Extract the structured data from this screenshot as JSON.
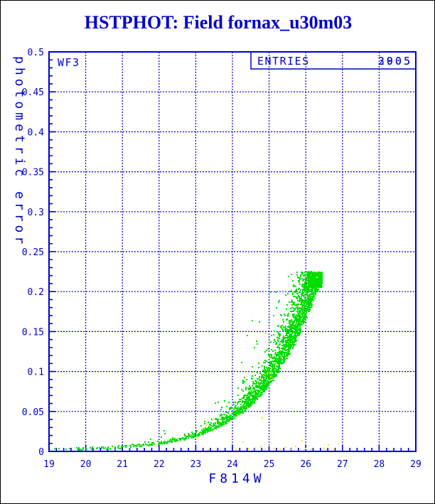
{
  "title": "HSTPHOT: Field fornax_u30m03",
  "panel_label": "WF3",
  "entries_box": {
    "label": "ENTRIES",
    "values": [
      "2905",
      "3005"
    ]
  },
  "colors": {
    "axis_blue": "#0000cc",
    "series_green": "#00dd00",
    "series_yellow": "#ffe400",
    "background": "#ffffff",
    "page_border": "#000000"
  },
  "chart_data": {
    "type": "scatter",
    "title": "HSTPHOT: Field fornax_u30m03",
    "xlabel": "F814W",
    "ylabel": "photometric error",
    "xlim": [
      19,
      29
    ],
    "ylim": [
      0,
      0.5
    ],
    "x_major_ticks": [
      19,
      20,
      21,
      22,
      23,
      24,
      25,
      26,
      27,
      28,
      29
    ],
    "x_tick_labels": [
      "19",
      "20",
      "21",
      "22",
      "23",
      "24",
      "25",
      "26",
      "27",
      "28",
      "29"
    ],
    "x_minor_step": 0.2,
    "y_major_ticks": [
      0,
      0.05,
      0.1,
      0.15,
      0.2,
      0.25,
      0.3,
      0.35,
      0.4,
      0.45,
      0.5
    ],
    "y_tick_labels": [
      "0",
      "0.05",
      "0.1",
      "0.15",
      "0.2",
      "0.25",
      "0.3",
      "0.35",
      "0.4",
      "0.45",
      "0.5"
    ],
    "y_minor_step": 0.01,
    "grid": "dashed lines at every major tick",
    "series": [
      {
        "name": "well-measured stars (green)",
        "color": "#00dd00",
        "marker_px": 2,
        "n_points": 2905,
        "mag_range": [
          19.05,
          26.45
        ],
        "max_error": 0.225,
        "ridge_error_vs_mag": [
          [
            19.0,
            0.0022
          ],
          [
            20.0,
            0.0032
          ],
          [
            21.0,
            0.005
          ],
          [
            21.5,
            0.0065
          ],
          [
            22.0,
            0.009
          ],
          [
            22.5,
            0.013
          ],
          [
            23.0,
            0.019
          ],
          [
            23.5,
            0.028
          ],
          [
            24.0,
            0.041
          ],
          [
            24.5,
            0.059
          ],
          [
            25.0,
            0.085
          ],
          [
            25.5,
            0.122
          ],
          [
            26.0,
            0.172
          ],
          [
            26.45,
            0.225
          ]
        ]
      },
      {
        "name": "flagged stars (yellow)",
        "color": "#ffe400",
        "marker_px": 2,
        "points": [
          [
            21.88,
            0.008
          ],
          [
            23.05,
            0.017
          ],
          [
            23.35,
            0.002
          ],
          [
            23.3,
            0.033
          ],
          [
            24.1,
            0.003
          ],
          [
            24.3,
            0.012
          ],
          [
            24.45,
            0.004
          ],
          [
            24.62,
            0.003
          ],
          [
            24.78,
            0.006
          ],
          [
            24.82,
            0.042
          ],
          [
            24.9,
            0.003
          ],
          [
            24.9,
            0.148
          ],
          [
            25.0,
            0.007
          ],
          [
            25.05,
            0.093
          ],
          [
            25.12,
            0.004
          ],
          [
            25.3,
            0.003
          ],
          [
            25.45,
            0.005
          ],
          [
            25.6,
            0.003
          ],
          [
            25.6,
            0.19
          ],
          [
            25.72,
            0.006
          ],
          [
            25.9,
            0.013
          ],
          [
            26.0,
            0.004
          ],
          [
            26.15,
            0.003
          ],
          [
            26.3,
            0.218
          ],
          [
            26.5,
            0.004
          ],
          [
            26.62,
            0.008
          ],
          [
            26.78,
            0.003
          ],
          [
            26.9,
            0.01
          ]
        ]
      }
    ]
  }
}
